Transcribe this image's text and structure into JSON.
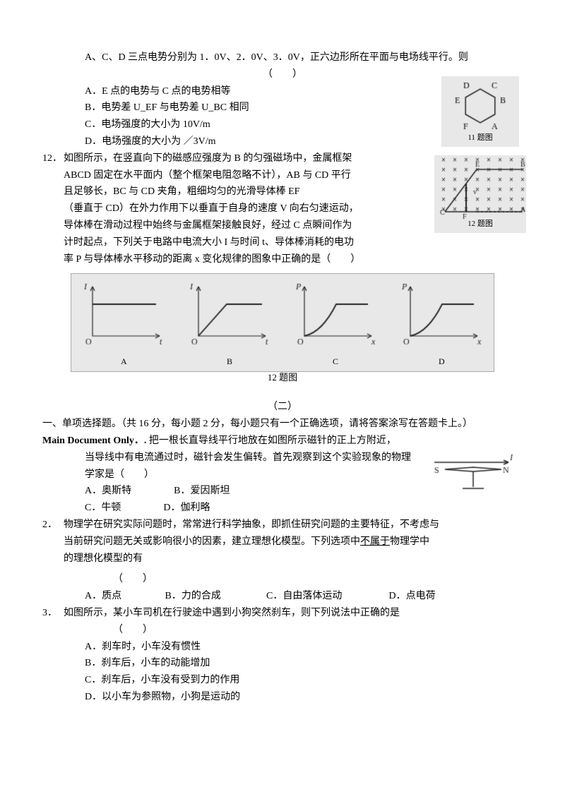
{
  "q11": {
    "intro1": "A、C、D 三点电势分别为 1．0V、2．0V、3．0V，正六边形所在平面与电场线平行。则",
    "blank": "（　　）",
    "optA": "A．E 点的电势与 C 点的电势相等",
    "optB": "B．电势差 U_EF 与电势差 U_BC 相同",
    "optC": "C．电场强度的大小为 10V/m",
    "optD": "D．电场强度的大小为 ／3V/m",
    "hex_vertices": [
      "D",
      "C",
      "E",
      "B",
      "F",
      "A"
    ],
    "fig_label": "11 题图"
  },
  "q12": {
    "num": "12．",
    "line1": "如图所示，在竖直向下的磁感应强度为 B 的匀强磁场中，金属框架",
    "line2": "ABCD 固定在水平面内（整个框架电阻忽略不计），AB 与 CD 平行",
    "line3": "且足够长，BC 与 CD 夹角，粗细均匀的光滑导体棒 EF",
    "line4": "（垂直于 CD）在外力作用下以垂直于自身的速度 V 向右匀速运动，",
    "line5": "导体棒在滑动过程中始终与金属框架接触良好，经过 C 点瞬间作为",
    "line6": "计时起点，下列关于电路中电流大小 I 与时间 t、导体棒消耗的电功",
    "line7": "率 P 与导体棒水平移动的距离 x 变化规律的图象中正确的是（　　）",
    "fig_label": "12 题图",
    "graph_sub_label": "12 题图",
    "graphs": [
      {
        "id": "A",
        "y": "I",
        "x": "t",
        "shape": "step_flat"
      },
      {
        "id": "B",
        "y": "I",
        "x": "t",
        "shape": "ramp_flat"
      },
      {
        "id": "C",
        "y": "P",
        "x": "x",
        "shape": "curve_flat"
      },
      {
        "id": "D",
        "y": "P",
        "x": "x",
        "shape": "curve_flat"
      }
    ]
  },
  "section2": {
    "label": "（二）",
    "heading": "一、单项选择题。（共 16 分，每小题 2 分，每小题只有一个正确选项，请将答案涂写在答题卡上。）"
  },
  "s2q1": {
    "prefix": "Main Document Only．.",
    "body1": "把一根长直导线平行地放在如图所示磁针的正上方附近，",
    "body2": "当导线中有电流通过时，磁针会发生偏转。首先观察到这个实验现象的物理",
    "body3": "学家是（　　）",
    "optA": "A．奥斯特",
    "optB": "B．爱因斯坦",
    "optC": "C．牛顿",
    "optD": "D．伽利略",
    "compass": {
      "left": "S",
      "right": "N",
      "arrow": "I"
    }
  },
  "s2q2": {
    "num": "2．",
    "body1": "物理学在研究实际问题时，常常进行科学抽象，即抓住研究问题的主要特征，不考虑与",
    "body2": "当前研究问题无关或影响很小的因素，建立理想化模型。下列选项中",
    "underline": "不属于",
    "body2b": "物理学中",
    "body3": "的理想化模型的有",
    "blank": "（　　）",
    "optA": "A．质点",
    "optB": "B．力的合成",
    "optC": "C．自由落体运动",
    "optD": "D．点电荷"
  },
  "s2q3": {
    "num": "3．",
    "body1": "如图所示，某小车司机在行驶途中遇到小狗突然刹车，则下列说法中正确的是",
    "blank": "（　　）",
    "optA": "A．刹车时，小车没有惯性",
    "optB": "B．刹车后，小车的动能增加",
    "optC": "C．刹车后，小车没有受到力的作用",
    "optD": "D．以小车为参照物，小狗是运动的"
  },
  "colors": {
    "text": "#000000",
    "bg": "#ffffff",
    "fig_bg": "#e8e8e8",
    "fig_border": "#aaaaaa",
    "line": "#222222"
  }
}
